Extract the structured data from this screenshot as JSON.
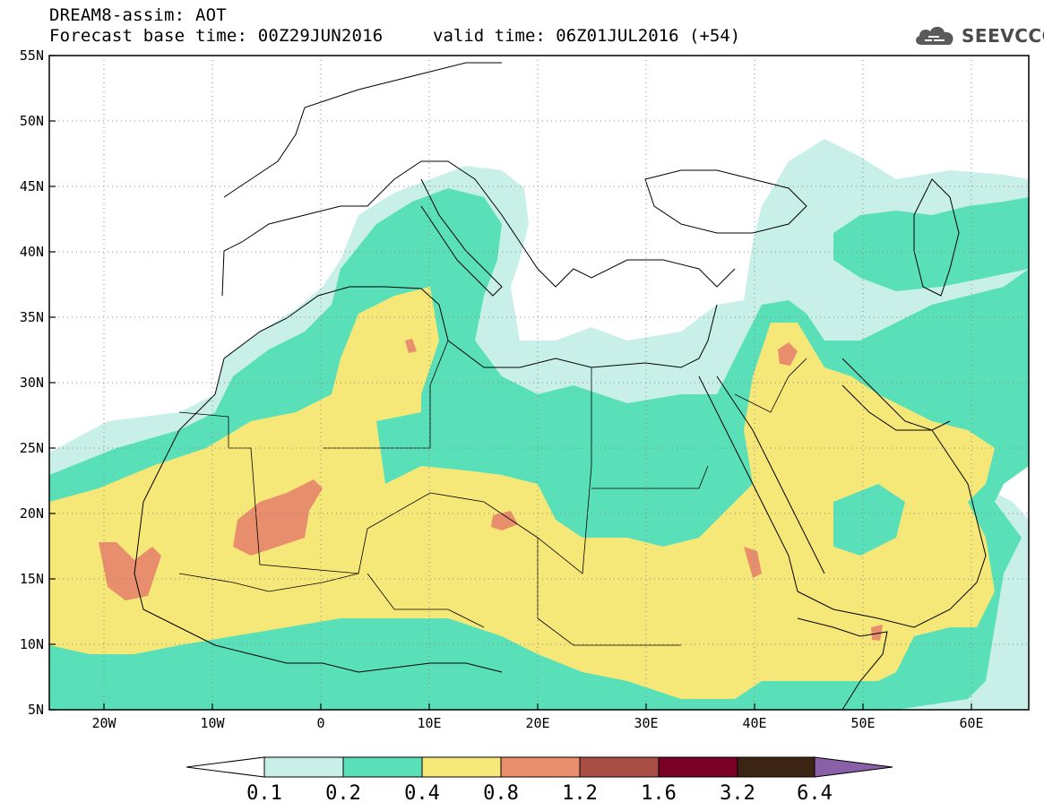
{
  "header": {
    "title": "DREAM8-assim: AOT",
    "base_time": "Forecast base time: 00Z29JUN2016",
    "valid_time": "valid time: 06Z01JUL2016 (+54)"
  },
  "logo": {
    "text": "SEEVCCC",
    "icon": "cloud-icon"
  },
  "map": {
    "lon_range": [
      -25,
      65
    ],
    "lat_range": [
      5,
      55
    ],
    "lat_ticks": [
      "55N",
      "50N",
      "45N",
      "40N",
      "35N",
      "30N",
      "25N",
      "20N",
      "15N",
      "10N",
      "5N"
    ],
    "lon_ticks": [
      "20W",
      "10W",
      "0",
      "10E",
      "20E",
      "30E",
      "40E",
      "50E",
      "60E"
    ],
    "grid": "dotted"
  },
  "legend": {
    "levels": [
      "0.1",
      "0.2",
      "0.4",
      "0.8",
      "1.2",
      "1.6",
      "3.2",
      "6.4"
    ],
    "colors": {
      "below": "#ffffff",
      "c1": "#c8f0e8",
      "c2": "#5ae0b8",
      "c3": "#f6e878",
      "c4": "#e88e6c",
      "c5": "#a84e44",
      "c6": "#7a0026",
      "c7": "#3c2414",
      "above": "#8a60a8"
    }
  }
}
